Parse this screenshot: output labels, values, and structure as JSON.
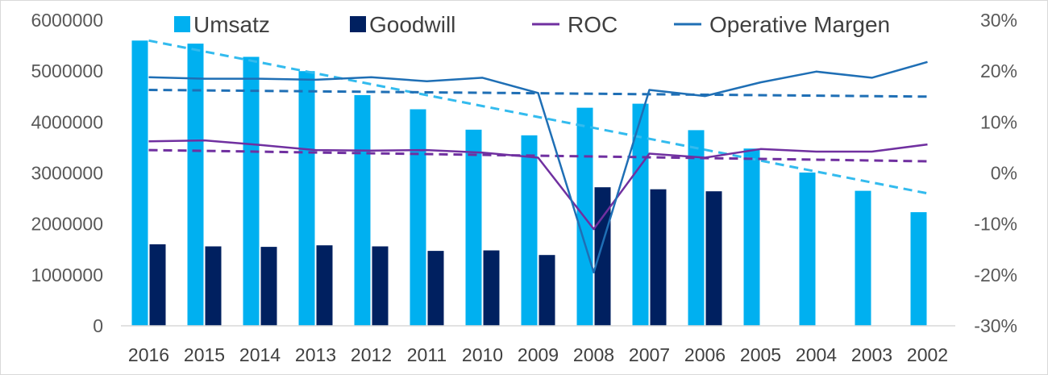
{
  "chart_data": {
    "type": "bar",
    "categories": [
      "2016",
      "2015",
      "2014",
      "2013",
      "2012",
      "2011",
      "2010",
      "2009",
      "2008",
      "2007",
      "2006",
      "2005",
      "2004",
      "2003",
      "2002"
    ],
    "y_left": {
      "min": 0,
      "max": 6000000,
      "step": 1000000,
      "ticks": [
        "0",
        "1000000",
        "2000000",
        "3000000",
        "4000000",
        "5000000",
        "6000000"
      ]
    },
    "y_right": {
      "min": -30,
      "max": 30,
      "step": 10,
      "ticks": [
        "-30%",
        "-20%",
        "-10%",
        "0%",
        "10%",
        "20%",
        "30%"
      ]
    },
    "legend_position": "top",
    "series": [
      {
        "name": "Umsatz",
        "kind": "bar",
        "axis": "left",
        "color": "#00b0f0",
        "values": [
          5600000,
          5540000,
          5280000,
          5000000,
          4530000,
          4250000,
          3850000,
          3740000,
          4280000,
          4360000,
          3840000,
          3480000,
          3010000,
          2650000,
          2230000
        ]
      },
      {
        "name": "Goodwill",
        "kind": "bar",
        "axis": "left",
        "color": "#002060",
        "values": [
          1600000,
          1560000,
          1550000,
          1580000,
          1560000,
          1470000,
          1480000,
          1390000,
          2720000,
          2680000,
          2640000,
          null,
          null,
          null,
          null
        ]
      },
      {
        "name": "ROC",
        "kind": "line",
        "axis": "right",
        "color": "#7030a0",
        "values": [
          6.2,
          6.4,
          5.5,
          4.5,
          4.4,
          4.5,
          4.0,
          3.0,
          -11.0,
          3.8,
          3.0,
          4.7,
          4.2,
          4.2,
          5.6
        ]
      },
      {
        "name": "Operative Margen",
        "kind": "line",
        "axis": "right",
        "color": "#1f6fb5",
        "values": [
          18.8,
          18.5,
          18.5,
          18.3,
          18.8,
          18.0,
          18.7,
          15.7,
          -19.5,
          16.3,
          15.1,
          17.8,
          19.9,
          18.7,
          21.8
        ]
      }
    ],
    "trendlines": [
      {
        "of": "Umsatz",
        "axis": "left",
        "color": "#33bbee",
        "start": 5600000,
        "end": 2600000
      },
      {
        "of": "Operative Margen",
        "axis": "right",
        "color": "#1f6fb5",
        "start": 16.3,
        "end": 15.0
      },
      {
        "of": "ROC",
        "axis": "right",
        "color": "#7030a0",
        "start": 4.5,
        "end": 2.3
      }
    ]
  }
}
